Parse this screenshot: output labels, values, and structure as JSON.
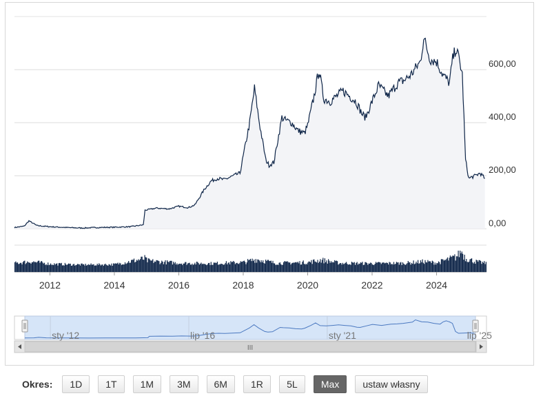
{
  "chart_data": {
    "type": "area",
    "title": "",
    "xlabel": "",
    "ylabel": "",
    "y_axis_position": "right",
    "xlim": [
      2010.9,
      2025.55
    ],
    "ylim": [
      -20,
      800
    ],
    "y_ticks": [
      0,
      200,
      400,
      600
    ],
    "y_tick_labels": [
      "0,00",
      "200,00",
      "400,00",
      "600,00"
    ],
    "x_ticks": [
      2012,
      2014,
      2016,
      2018,
      2020,
      2022,
      2024
    ],
    "x_tick_labels": [
      "2012",
      "2014",
      "2016",
      "2018",
      "2020",
      "2022",
      "2024"
    ],
    "grid": true,
    "legend": "none",
    "series": [
      {
        "x": [
          2010.9,
          2011.2,
          2011.35,
          2011.6,
          2012.0,
          2012.5,
          2013.0,
          2013.5,
          2014.0,
          2014.5,
          2014.9,
          2014.95,
          2015.3,
          2015.7,
          2016.0,
          2016.3,
          2016.5,
          2016.8,
          2017.0,
          2017.2,
          2017.4,
          2017.7,
          2017.9,
          2018.2,
          2018.35,
          2018.5,
          2018.7,
          2018.8,
          2018.95,
          2019.2,
          2019.3,
          2019.5,
          2019.7,
          2019.9,
          2020.0,
          2020.2,
          2020.35,
          2020.5,
          2020.7,
          2020.9,
          2021.1,
          2021.3,
          2021.5,
          2021.7,
          2021.8,
          2022.0,
          2022.2,
          2022.5,
          2022.8,
          2023.0,
          2023.2,
          2023.5,
          2023.6,
          2023.8,
          2024.0,
          2024.2,
          2024.4,
          2024.5,
          2024.6,
          2024.65,
          2024.7,
          2024.8,
          2024.9,
          2025.0,
          2025.2,
          2025.35,
          2025.5
        ],
        "y": [
          5,
          10,
          30,
          12,
          8,
          5,
          3,
          5,
          6,
          8,
          15,
          70,
          78,
          75,
          85,
          80,
          90,
          150,
          180,
          190,
          185,
          200,
          210,
          400,
          530,
          400,
          260,
          240,
          250,
          420,
          410,
          400,
          370,
          360,
          390,
          500,
          600,
          490,
          480,
          500,
          520,
          500,
          480,
          430,
          420,
          480,
          540,
          500,
          550,
          560,
          580,
          630,
          720,
          640,
          630,
          580,
          550,
          640,
          680,
          660,
          640,
          580,
          260,
          190,
          200,
          210,
          190
        ]
      }
    ],
    "volume": {
      "x": [
        2010.9,
        2011.4,
        2012.0,
        2013.0,
        2014.0,
        2014.95,
        2015.0,
        2016.0,
        2017.0,
        2018.0,
        2018.4,
        2019.0,
        2020.0,
        2020.4,
        2021.0,
        2022.0,
        2023.0,
        2023.6,
        2024.0,
        2024.6,
        2024.75,
        2024.9,
        2025.2,
        2025.5
      ],
      "y": [
        30,
        40,
        25,
        20,
        22,
        60,
        45,
        30,
        28,
        35,
        55,
        30,
        35,
        50,
        30,
        28,
        30,
        40,
        32,
        70,
        110,
        60,
        40,
        30
      ]
    },
    "navigator": {
      "labels": [
        "sty '12",
        "lip '16",
        "sty '21",
        "lip '25"
      ],
      "label_x": [
        2012.0,
        2016.5,
        2021.0,
        2025.5
      ],
      "range": [
        2010.9,
        2025.55
      ]
    }
  },
  "period_selector": {
    "label": "Okres:",
    "buttons": [
      "1D",
      "1T",
      "1M",
      "3M",
      "6M",
      "1R",
      "5L",
      "Max",
      "ustaw własny"
    ],
    "active": "Max"
  },
  "scrollbar": {
    "grip": "III"
  },
  "colors": {
    "line": "#0d2447",
    "area_fill": "#f3f4f7",
    "volume": "#0d2447",
    "navigator_fill": "#d6e5f8",
    "navigator_line": "#4a78c0",
    "active_button": "#666666"
  }
}
